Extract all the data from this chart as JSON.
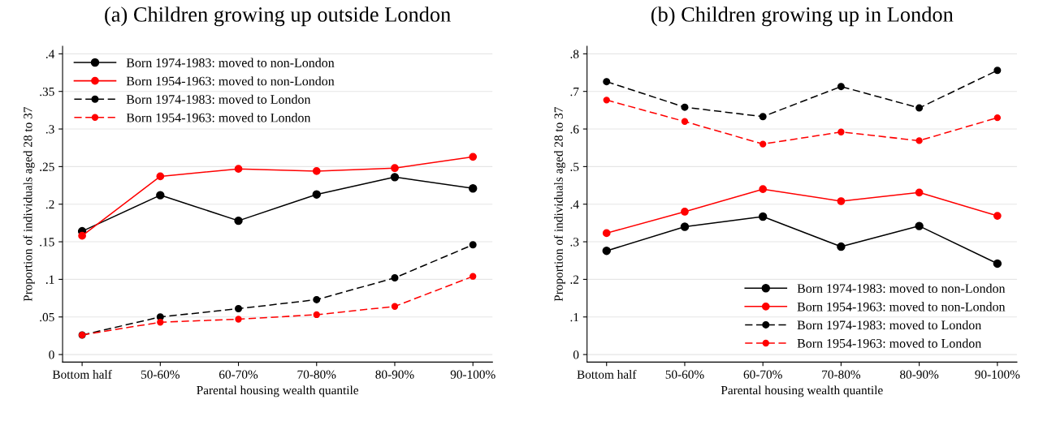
{
  "chart_data": [
    {
      "type": "line",
      "title": "(a) Children growing up outside London",
      "xlabel": "Parental housing wealth quantile",
      "ylabel": "Proportion of individuals aged 28 to 37",
      "categories": [
        "Bottom half",
        "50-60%",
        "60-70%",
        "70-80%",
        "80-90%",
        "90-100%"
      ],
      "series": [
        {
          "name": "Born 1974-1983: moved to non-London",
          "color": "#000000",
          "line_style": "solid",
          "values": [
            0.164,
            0.212,
            0.178,
            0.213,
            0.236,
            0.221
          ]
        },
        {
          "name": "Born 1954-1963: moved to non-London",
          "color": "#ff0000",
          "line_style": "solid",
          "values": [
            0.158,
            0.237,
            0.247,
            0.244,
            0.248,
            0.263
          ]
        },
        {
          "name": "Born 1974-1983: moved to London",
          "color": "#000000",
          "line_style": "dashed",
          "values": [
            0.026,
            0.05,
            0.061,
            0.073,
            0.102,
            0.146
          ]
        },
        {
          "name": "Born 1954-1963: moved to London",
          "color": "#ff0000",
          "line_style": "dashed",
          "values": [
            0.026,
            0.043,
            0.047,
            0.053,
            0.064,
            0.104
          ]
        }
      ],
      "ylim": [
        -0.01,
        0.41
      ],
      "yticks": [
        {
          "value": 0,
          "label": "0"
        },
        {
          "value": 0.05,
          "label": ".05"
        },
        {
          "value": 0.1,
          "label": ".1"
        },
        {
          "value": 0.15,
          "label": ".15"
        },
        {
          "value": 0.2,
          "label": ".2"
        },
        {
          "value": 0.25,
          "label": ".25"
        },
        {
          "value": 0.3,
          "label": ".3"
        },
        {
          "value": 0.35,
          "label": ".35"
        },
        {
          "value": 0.4,
          "label": ".4"
        }
      ],
      "grid": "y",
      "legend": "top left",
      "marker": "circle"
    },
    {
      "type": "line",
      "title": "(b) Children growing up in London",
      "xlabel": "Parental housing wealth quantile",
      "ylabel": "Proportion of individuals aged 28 to 37",
      "categories": [
        "Bottom half",
        "50-60%",
        "60-70%",
        "70-80%",
        "80-90%",
        "90-100%"
      ],
      "series": [
        {
          "name": "Born 1974-1983: moved to non-London",
          "color": "#000000",
          "line_style": "solid",
          "values": [
            0.276,
            0.34,
            0.367,
            0.287,
            0.342,
            0.242
          ]
        },
        {
          "name": "Born 1954-1963: moved to non-London",
          "color": "#ff0000",
          "line_style": "solid",
          "values": [
            0.323,
            0.38,
            0.44,
            0.408,
            0.431,
            0.369
          ]
        },
        {
          "name": "Born 1974-1983: moved to London",
          "color": "#000000",
          "line_style": "dashed",
          "values": [
            0.726,
            0.658,
            0.633,
            0.713,
            0.656,
            0.756
          ]
        },
        {
          "name": "Born 1954-1963: moved to London",
          "color": "#ff0000",
          "line_style": "dashed",
          "values": [
            0.677,
            0.62,
            0.56,
            0.592,
            0.569,
            0.63
          ]
        }
      ],
      "ylim": [
        -0.02,
        0.82
      ],
      "yticks": [
        {
          "value": 0,
          "label": "0"
        },
        {
          "value": 0.1,
          "label": ".1"
        },
        {
          "value": 0.2,
          "label": ".2"
        },
        {
          "value": 0.3,
          "label": ".3"
        },
        {
          "value": 0.4,
          "label": ".4"
        },
        {
          "value": 0.5,
          "label": ".5"
        },
        {
          "value": 0.6,
          "label": ".6"
        },
        {
          "value": 0.7,
          "label": ".7"
        },
        {
          "value": 0.8,
          "label": ".8"
        }
      ],
      "grid": "y",
      "legend": "bottom right",
      "marker": "circle"
    }
  ]
}
